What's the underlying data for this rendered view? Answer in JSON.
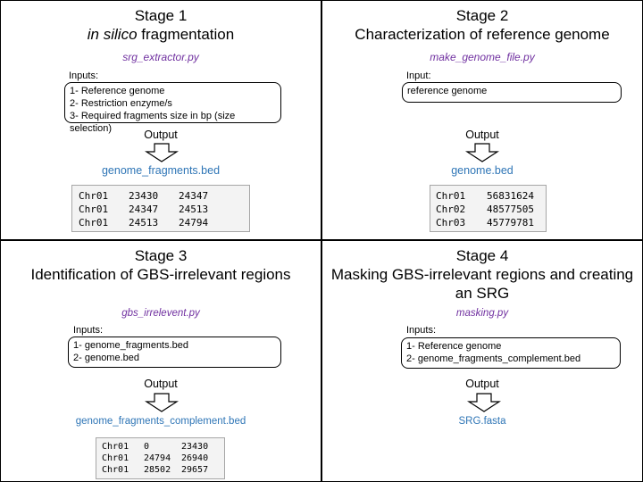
{
  "stages": [
    {
      "stage_label": "Stage 1",
      "title_italic": "in silico",
      "title_rest": " fragmentation",
      "script": "srg_extractor.py",
      "inputs_label": "Inputs:",
      "inputs": [
        "1- Reference genome",
        "2- Restriction enzyme/s",
        "3- Required fragments size in bp (size selection)"
      ],
      "output_label": "Output",
      "output_file": "genome_fragments.bed",
      "table": [
        [
          "Chr01",
          "23430",
          "24347"
        ],
        [
          "Chr01",
          "24347",
          "24513"
        ],
        [
          "Chr01",
          "24513",
          "24794"
        ]
      ]
    },
    {
      "stage_label": "Stage 2",
      "title": "Characterization of reference genome",
      "script": "make_genome_file.py",
      "inputs_label": "Input:",
      "inputs": [
        "reference genome"
      ],
      "output_label": "Output",
      "output_file": "genome.bed",
      "table": [
        [
          "Chr01",
          "56831624"
        ],
        [
          "Chr02",
          "48577505"
        ],
        [
          "Chr03",
          "45779781"
        ]
      ]
    },
    {
      "stage_label": "Stage 3",
      "title": "Identification of GBS-irrelevant regions",
      "script": "gbs_irrelevent.py",
      "inputs_label": "Inputs:",
      "inputs": [
        "1- genome_fragments.bed",
        "2- genome.bed"
      ],
      "output_label": "Output",
      "output_file": "genome_fragments_complement.bed",
      "table": [
        [
          "Chr01",
          "0",
          "23430"
        ],
        [
          "Chr01",
          "24794",
          "26940"
        ],
        [
          "Chr01",
          "28502",
          "29657"
        ]
      ]
    },
    {
      "stage_label": "Stage 4",
      "title_line1": "Masking GBS-irrelevant regions and creating",
      "title_line2": "an SRG",
      "script": "masking.py",
      "inputs_label": "Inputs:",
      "inputs": [
        "1- Reference genome",
        "2- genome_fragments_complement.bed"
      ],
      "output_label": "Output",
      "output_file": "SRG.fasta"
    }
  ]
}
